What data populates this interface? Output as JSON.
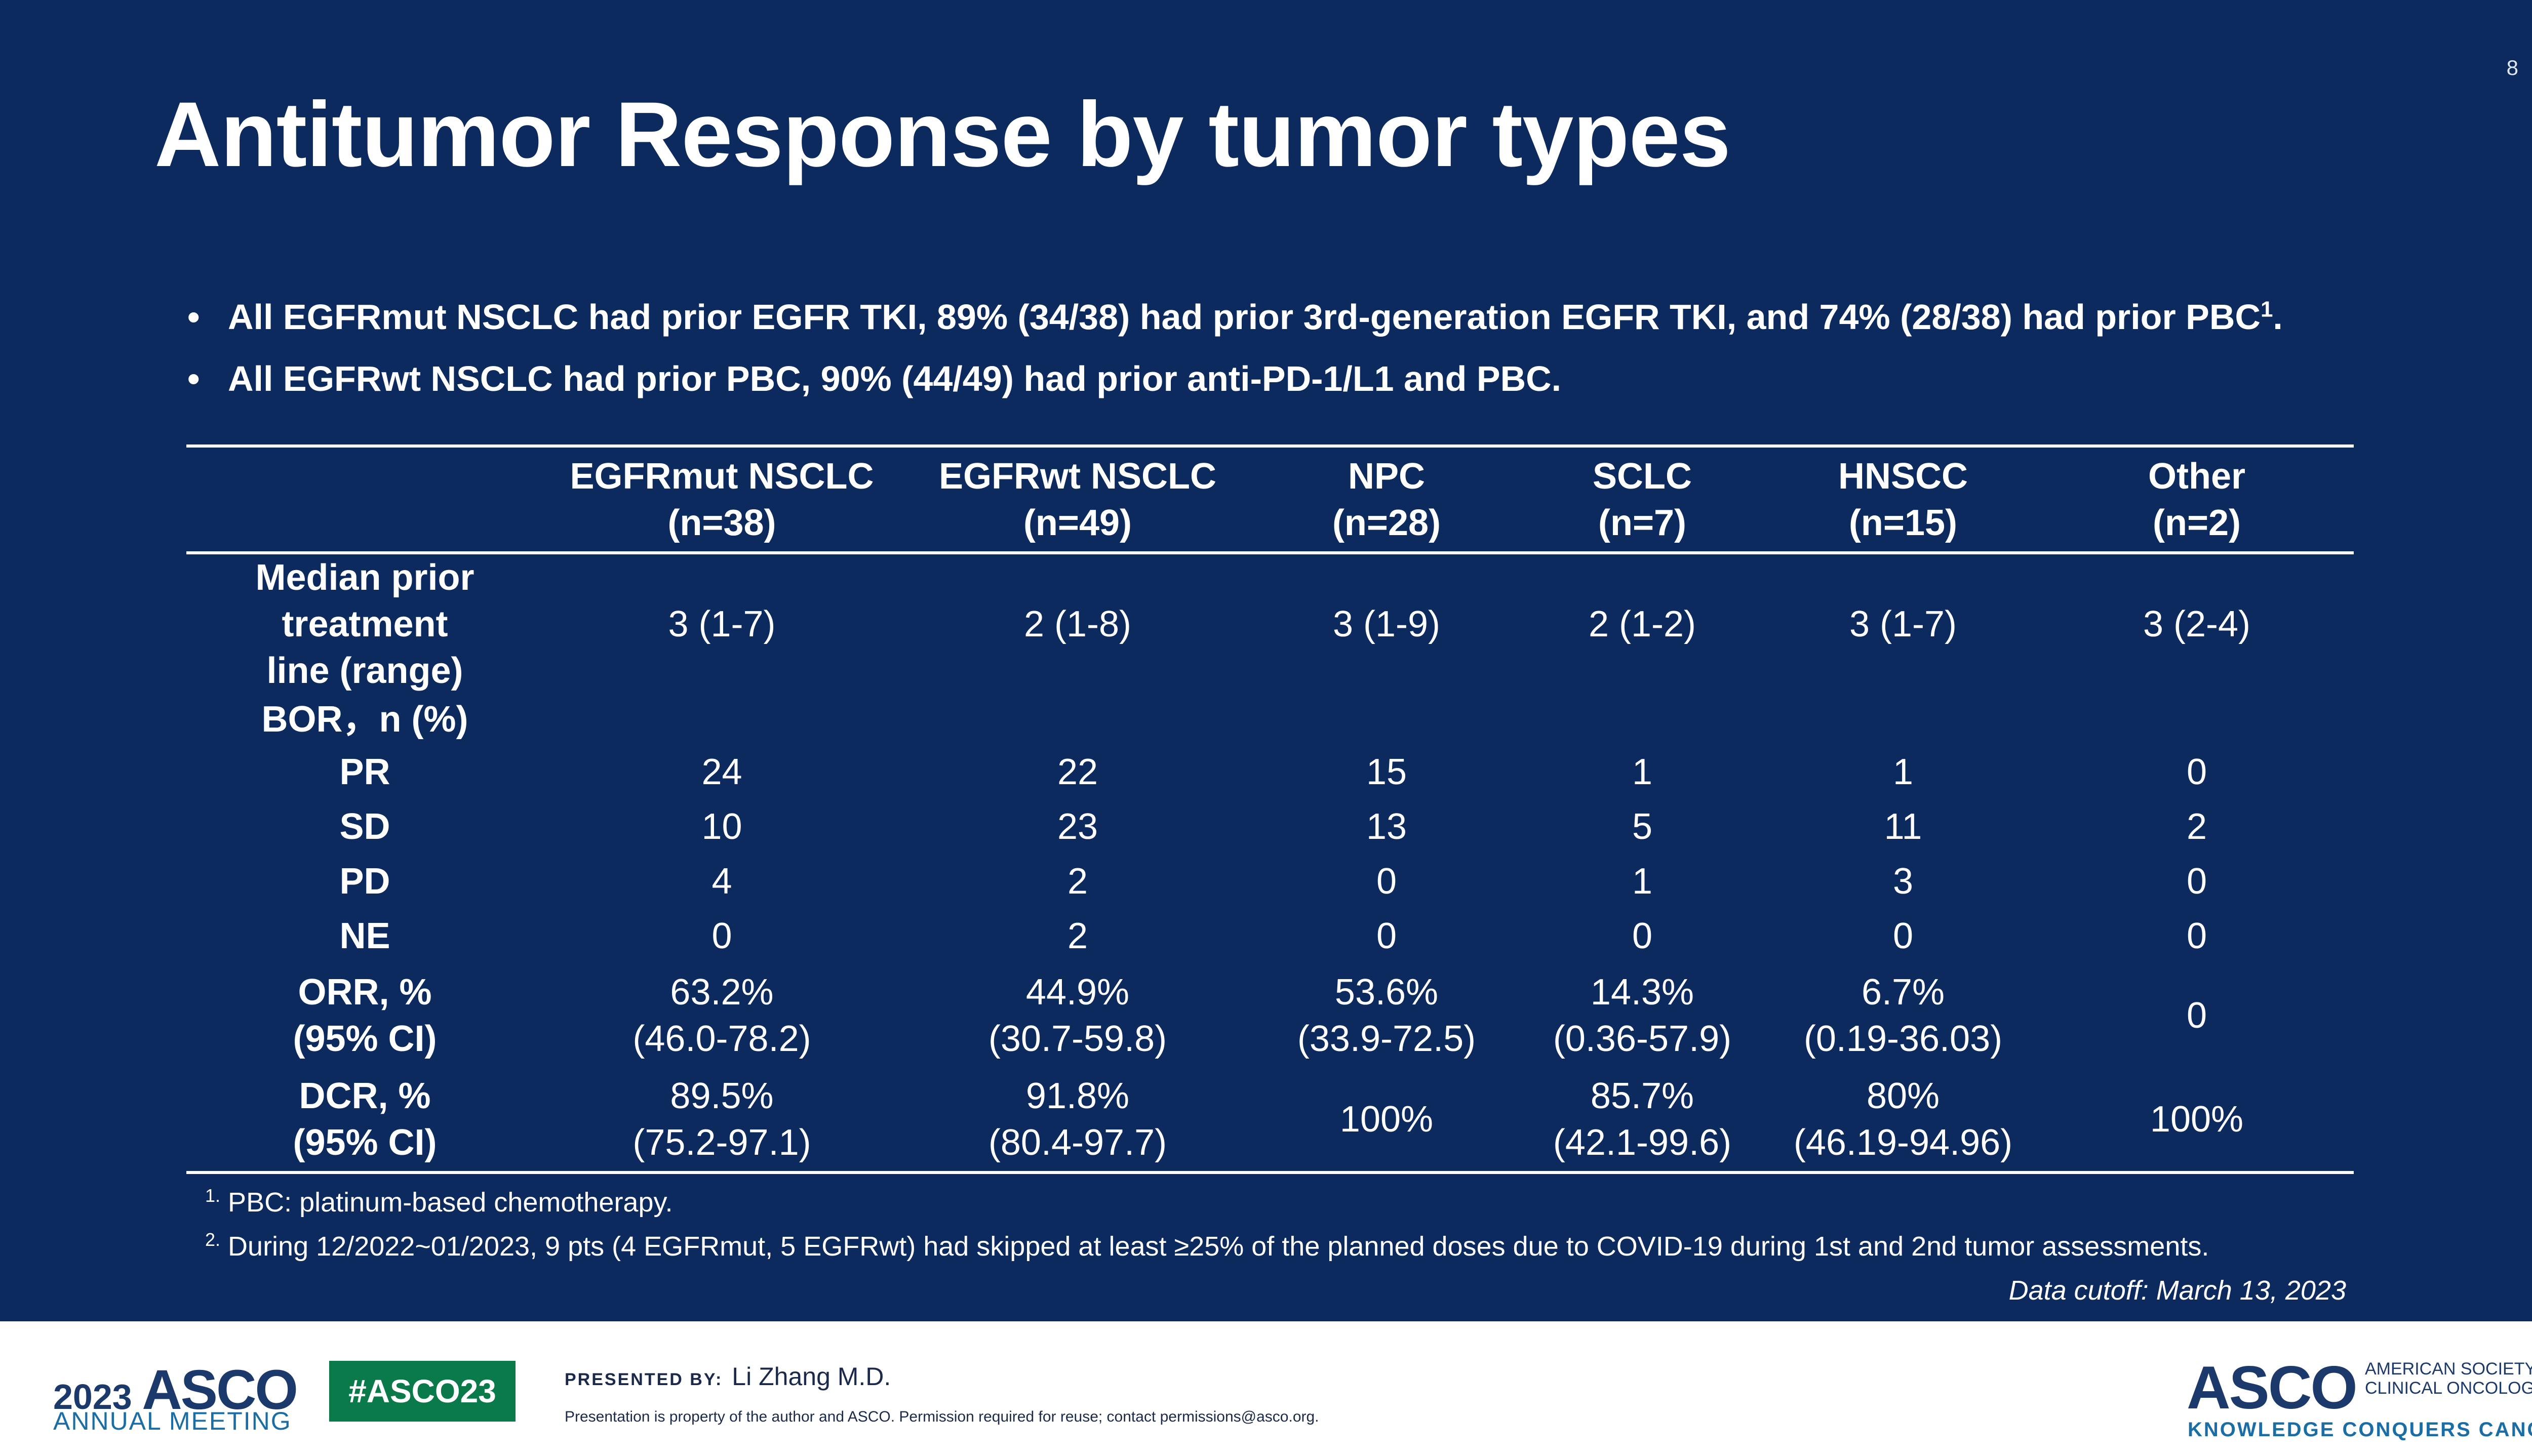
{
  "slide": {
    "page_number": "8",
    "title": "Antitumor Response by tumor types",
    "bullets": [
      {
        "text": "All EGFRmut NSCLC had prior EGFR TKI, 89% (34/38) had prior 3rd-generation EGFR TKI, and 74% (28/38) had prior PBC",
        "sup": "1",
        "tail": "."
      },
      {
        "text": "All EGFRwt NSCLC had prior PBC, 90% (44/49) had prior anti-PD-1/L1 and PBC.",
        "sup": "",
        "tail": ""
      }
    ]
  },
  "table": {
    "headers": [
      {
        "line1": "",
        "line2": ""
      },
      {
        "line1": "EGFRmut NSCLC",
        "line2": "(n=38)"
      },
      {
        "line1": "EGFRwt NSCLC",
        "line2": "(n=49)"
      },
      {
        "line1": "NPC",
        "line2": "(n=28)"
      },
      {
        "line1": "SCLC",
        "line2": "(n=7)"
      },
      {
        "line1": "HNSCC",
        "line2": "(n=15)"
      },
      {
        "line1": "Other",
        "line2": "(n=2)"
      }
    ],
    "rows": {
      "median": {
        "label1": "Median prior treatment",
        "label2": "line (range)",
        "cells": [
          "3 (1-7)",
          "2 (1-8)",
          "3 (1-9)",
          "2 (1-2)",
          "3 (1-7)",
          "3 (2-4)"
        ]
      },
      "bor": {
        "label": "BOR，n (%)"
      },
      "pr": {
        "label": "PR",
        "cells": [
          "24",
          "22",
          "15",
          "1",
          "1",
          "0"
        ]
      },
      "sd": {
        "label": "SD",
        "cells": [
          "10",
          "23",
          "13",
          "5",
          "11",
          "2"
        ]
      },
      "pd": {
        "label": "PD",
        "cells": [
          "4",
          "2",
          "0",
          "1",
          "3",
          "0"
        ]
      },
      "ne": {
        "label": "NE",
        "cells": [
          "0",
          "2",
          "0",
          "0",
          "0",
          "0"
        ]
      },
      "orr": {
        "label1": "ORR, %",
        "label2": "(95% CI)",
        "cells": [
          {
            "v": "63.2%",
            "ci": "(46.0-78.2)"
          },
          {
            "v": "44.9%",
            "ci": "(30.7-59.8)"
          },
          {
            "v": "53.6%",
            "ci": "(33.9-72.5)"
          },
          {
            "v": "14.3%",
            "ci": "(0.36-57.9)"
          },
          {
            "v": "6.7%",
            "ci": "(0.19-36.03)"
          },
          {
            "v": "0",
            "ci": ""
          }
        ]
      },
      "dcr": {
        "label1": "DCR, %",
        "label2": "(95% CI)",
        "cells": [
          {
            "v": "89.5%",
            "ci": "(75.2-97.1)"
          },
          {
            "v": "91.8%",
            "ci": "(80.4-97.7)"
          },
          {
            "v": "100%",
            "ci": ""
          },
          {
            "v": "85.7%",
            "ci": "(42.1-99.6)"
          },
          {
            "v": "80%",
            "ci": "(46.19-94.96)"
          },
          {
            "v": "100%",
            "ci": ""
          }
        ]
      }
    }
  },
  "footnotes": [
    {
      "num": "1.",
      "text": "PBC: platinum-based  chemotherapy."
    },
    {
      "num": "2.",
      "text": "During 12/2022~01/2023, 9 pts (4 EGFRmut, 5 EGFRwt) had skipped at least ≥25% of the planned doses due to COVID-19 during 1st and 2nd tumor assessments."
    }
  ],
  "data_cutoff": "Data cutoff: March 13, 2023",
  "footer": {
    "year": "2023",
    "asco": "ASCO",
    "meeting": "ANNUAL MEETING",
    "hashtag": "#ASCO23",
    "presented_label": "PRESENTED BY:",
    "presenter": "Li Zhang M.D.",
    "property_note": "Presentation is property of the author and ASCO. Permission required for reuse; contact permissions@asco.org.",
    "logo": "ASCO",
    "society_line1": "AMERICAN SOCIETY OF",
    "society_line2": "CLINICAL ONCOLOGY",
    "tagline": "KNOWLEDGE CONQUERS CANCER"
  }
}
